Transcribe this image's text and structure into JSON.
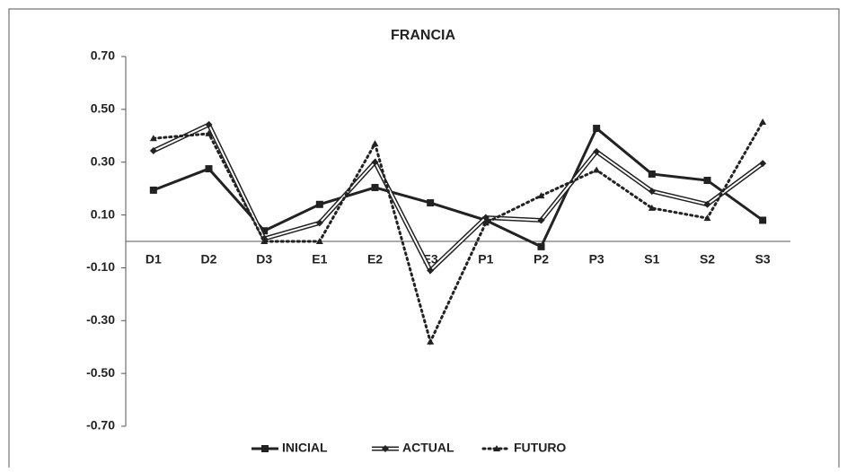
{
  "chart_data": {
    "type": "line",
    "title": "FRANCIA",
    "categories": [
      "D1",
      "D2",
      "D3",
      "E1",
      "E2",
      "E3",
      "P1",
      "P2",
      "P3",
      "S1",
      "S2",
      "S3"
    ],
    "series": [
      {
        "name": "INICIAL",
        "color": "#222222",
        "style": "solid",
        "marker": "square",
        "values": [
          0.194,
          0.275,
          0.04,
          0.14,
          0.204,
          0.146,
          0.08,
          -0.02,
          0.428,
          0.255,
          0.231,
          0.08
        ]
      },
      {
        "name": "ACTUAL",
        "color": "#222222",
        "style": "double",
        "marker": "diamond",
        "values": [
          0.343,
          0.442,
          0.01,
          0.07,
          0.3,
          -0.11,
          0.09,
          0.08,
          0.34,
          0.19,
          0.14,
          0.295
        ]
      },
      {
        "name": "FUTURO",
        "color": "#222222",
        "style": "dotted",
        "marker": "triangle",
        "values": [
          0.39,
          0.408,
          0.0,
          0.0,
          0.37,
          -0.38,
          0.07,
          0.173,
          0.27,
          0.126,
          0.088,
          0.452
        ]
      }
    ],
    "ylim": [
      -0.7,
      0.7
    ],
    "yticks": [
      {
        "value": 0.7,
        "label": "0.70"
      },
      {
        "value": 0.5,
        "label": "0.50"
      },
      {
        "value": 0.3,
        "label": "0.30"
      },
      {
        "value": 0.1,
        "label": "0.10"
      },
      {
        "value": -0.1,
        "label": "-0.10"
      },
      {
        "value": -0.3,
        "label": "-0.30"
      },
      {
        "value": -0.5,
        "label": "-0.50"
      },
      {
        "value": -0.7,
        "label": "-0.70"
      }
    ],
    "grid": false,
    "legend": "bottom"
  }
}
